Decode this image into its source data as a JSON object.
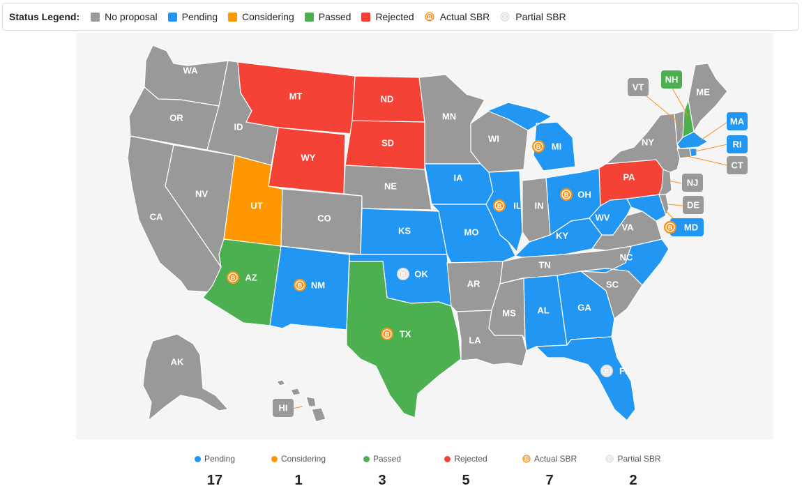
{
  "legend": {
    "title": "Status Legend:",
    "items": [
      {
        "label": "No proposal",
        "color": "#999999",
        "kind": "swatch"
      },
      {
        "label": "Pending",
        "color": "#2196f3",
        "kind": "swatch"
      },
      {
        "label": "Considering",
        "color": "#ff9800",
        "kind": "swatch"
      },
      {
        "label": "Passed",
        "color": "#4caf50",
        "kind": "swatch"
      },
      {
        "label": "Rejected",
        "color": "#f44336",
        "kind": "swatch"
      },
      {
        "label": "Actual SBR",
        "color": "#f7931a",
        "kind": "bitcoin-icon"
      },
      {
        "label": "Partial SBR",
        "color": "#dddddd",
        "kind": "bitcoin-icon"
      }
    ]
  },
  "colors": {
    "none": "#999999",
    "pending": "#2196f3",
    "considering": "#ff9800",
    "passed": "#4caf50",
    "rejected": "#f44336",
    "actual": "#f7931a",
    "partial": "#e0e0e0"
  },
  "states": [
    {
      "abbr": "WA",
      "status": "none"
    },
    {
      "abbr": "OR",
      "status": "none"
    },
    {
      "abbr": "CA",
      "status": "none"
    },
    {
      "abbr": "NV",
      "status": "none"
    },
    {
      "abbr": "ID",
      "status": "none"
    },
    {
      "abbr": "MT",
      "status": "rejected"
    },
    {
      "abbr": "WY",
      "status": "rejected"
    },
    {
      "abbr": "UT",
      "status": "considering"
    },
    {
      "abbr": "AZ",
      "status": "passed",
      "sbr": "actual"
    },
    {
      "abbr": "CO",
      "status": "none"
    },
    {
      "abbr": "NM",
      "status": "pending",
      "sbr": "actual"
    },
    {
      "abbr": "ND",
      "status": "rejected"
    },
    {
      "abbr": "SD",
      "status": "rejected"
    },
    {
      "abbr": "NE",
      "status": "none"
    },
    {
      "abbr": "KS",
      "status": "pending"
    },
    {
      "abbr": "OK",
      "status": "pending",
      "sbr": "partial"
    },
    {
      "abbr": "TX",
      "status": "passed",
      "sbr": "actual"
    },
    {
      "abbr": "MN",
      "status": "none"
    },
    {
      "abbr": "IA",
      "status": "pending"
    },
    {
      "abbr": "MO",
      "status": "pending"
    },
    {
      "abbr": "AR",
      "status": "none"
    },
    {
      "abbr": "LA",
      "status": "none"
    },
    {
      "abbr": "WI",
      "status": "none"
    },
    {
      "abbr": "IL",
      "status": "pending",
      "sbr": "actual"
    },
    {
      "abbr": "MI",
      "status": "pending",
      "sbr": "actual"
    },
    {
      "abbr": "IN",
      "status": "none"
    },
    {
      "abbr": "OH",
      "status": "pending",
      "sbr": "actual"
    },
    {
      "abbr": "KY",
      "status": "pending"
    },
    {
      "abbr": "TN",
      "status": "none"
    },
    {
      "abbr": "MS",
      "status": "none"
    },
    {
      "abbr": "AL",
      "status": "pending"
    },
    {
      "abbr": "GA",
      "status": "pending"
    },
    {
      "abbr": "FL",
      "status": "pending",
      "sbr": "partial"
    },
    {
      "abbr": "SC",
      "status": "none"
    },
    {
      "abbr": "NC",
      "status": "pending"
    },
    {
      "abbr": "VA",
      "status": "none"
    },
    {
      "abbr": "WV",
      "status": "pending"
    },
    {
      "abbr": "PA",
      "status": "rejected"
    },
    {
      "abbr": "NY",
      "status": "none"
    },
    {
      "abbr": "ME",
      "status": "none"
    },
    {
      "abbr": "AK",
      "status": "none"
    },
    {
      "abbr": "HI",
      "status": "none"
    },
    {
      "abbr": "VT",
      "status": "none"
    },
    {
      "abbr": "NH",
      "status": "passed"
    },
    {
      "abbr": "MA",
      "status": "pending"
    },
    {
      "abbr": "RI",
      "status": "pending"
    },
    {
      "abbr": "CT",
      "status": "none"
    },
    {
      "abbr": "NJ",
      "status": "none"
    },
    {
      "abbr": "DE",
      "status": "none"
    },
    {
      "abbr": "MD",
      "status": "pending",
      "sbr": "actual"
    }
  ],
  "stats": [
    {
      "label": "Pending",
      "value": "17",
      "color": "#2196f3",
      "kind": "dot"
    },
    {
      "label": "Considering",
      "value": "1",
      "color": "#ff9800",
      "kind": "dot"
    },
    {
      "label": "Passed",
      "value": "3",
      "color": "#4caf50",
      "kind": "dot"
    },
    {
      "label": "Rejected",
      "value": "5",
      "color": "#f44336",
      "kind": "dot"
    },
    {
      "label": "Actual SBR",
      "value": "7",
      "color": "#f7931a",
      "kind": "bitcoin-icon"
    },
    {
      "label": "Partial SBR",
      "value": "2",
      "color": "#dddddd",
      "kind": "bitcoin-icon"
    }
  ]
}
